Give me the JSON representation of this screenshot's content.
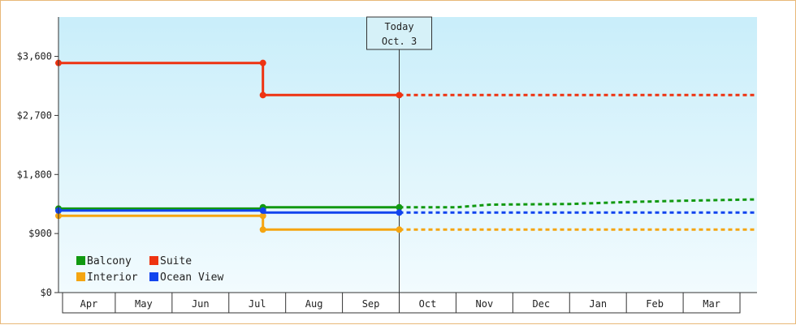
{
  "chart_data": {
    "type": "line",
    "title": "",
    "xlabel": "",
    "ylabel": "",
    "categories": [
      "Apr",
      "May",
      "Jun",
      "Jul",
      "Aug",
      "Sep",
      "Oct",
      "Nov",
      "Dec",
      "Jan",
      "Feb",
      "Mar"
    ],
    "y_ticks": [
      {
        "value": 0,
        "label": "$0"
      },
      {
        "value": 900,
        "label": "$900"
      },
      {
        "value": 1800,
        "label": "$1,800"
      },
      {
        "value": 2700,
        "label": "$2,700"
      },
      {
        "value": 3600,
        "label": "$3,600"
      }
    ],
    "ylim": [
      0,
      4200
    ],
    "xlim": [
      0,
      12.3
    ],
    "grid": false,
    "legend_position": "bottom-left",
    "today": {
      "x": 6.0,
      "line1": "Today",
      "line2": "Oct. 3"
    },
    "series": [
      {
        "name": "Balcony",
        "color": "#119911",
        "actual": [
          [
            0,
            1280
          ],
          [
            3.6,
            1280
          ],
          [
            3.6,
            1300
          ],
          [
            6.0,
            1300
          ]
        ],
        "forecast": [
          [
            6.0,
            1300
          ],
          [
            7.0,
            1300
          ],
          [
            7.6,
            1340
          ],
          [
            9.0,
            1350
          ],
          [
            10.0,
            1380
          ],
          [
            11.0,
            1400
          ],
          [
            12.3,
            1420
          ]
        ],
        "markers": [
          [
            0,
            1280
          ],
          [
            3.6,
            1280
          ],
          [
            3.6,
            1300
          ],
          [
            6.0,
            1300
          ]
        ]
      },
      {
        "name": "Suite",
        "color": "#ee3311",
        "actual": [
          [
            0,
            3500
          ],
          [
            3.6,
            3500
          ],
          [
            3.6,
            3010
          ],
          [
            6.0,
            3010
          ]
        ],
        "forecast": [
          [
            6.0,
            3010
          ],
          [
            12.3,
            3010
          ]
        ],
        "markers": [
          [
            0,
            3500
          ],
          [
            3.6,
            3500
          ],
          [
            3.6,
            3010
          ],
          [
            6.0,
            3010
          ]
        ]
      },
      {
        "name": "Interior",
        "color": "#f5a511",
        "actual": [
          [
            0,
            1170
          ],
          [
            3.6,
            1170
          ],
          [
            3.6,
            960
          ],
          [
            6.0,
            960
          ]
        ],
        "forecast": [
          [
            6.0,
            960
          ],
          [
            12.3,
            960
          ]
        ],
        "markers": [
          [
            0,
            1170
          ],
          [
            3.6,
            1170
          ],
          [
            3.6,
            960
          ],
          [
            6.0,
            960
          ]
        ]
      },
      {
        "name": "Ocean View",
        "color": "#1144ee",
        "actual": [
          [
            0,
            1250
          ],
          [
            3.6,
            1250
          ],
          [
            3.6,
            1220
          ],
          [
            6.0,
            1220
          ]
        ],
        "forecast": [
          [
            6.0,
            1220
          ],
          [
            12.3,
            1220
          ]
        ],
        "markers": [
          [
            0,
            1250
          ],
          [
            3.6,
            1250
          ],
          [
            6.0,
            1220
          ]
        ]
      }
    ]
  }
}
